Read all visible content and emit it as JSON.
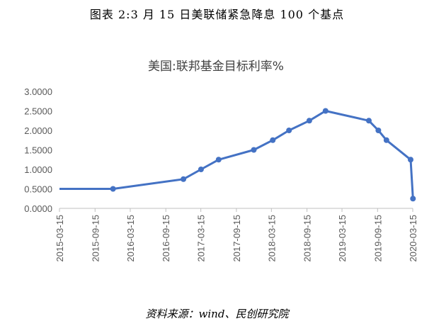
{
  "caption": "图表 2:3 月 15 日美联储紧急降息 100 个基点",
  "source": "资料来源：wind、民创研究院",
  "chart_data": {
    "type": "line",
    "title": "美国:联邦基金目标利率%",
    "xlabel": "",
    "ylabel": "",
    "x_tick_labels": [
      "2015-03-15",
      "2015-09-15",
      "2016-03-15",
      "2016-09-15",
      "2017-03-15",
      "2017-09-15",
      "2018-03-15",
      "2018-09-15",
      "2019-03-15",
      "2019-09-15",
      "2020-03-15"
    ],
    "y_tick_labels": [
      "0.0000",
      "0.5000",
      "1.0000",
      "1.5000",
      "2.0000",
      "2.5000",
      "3.0000"
    ],
    "ylim": [
      0,
      3
    ],
    "xlim": [
      "2015-03-15",
      "2020-03-15"
    ],
    "series_color": "#4472C4",
    "x": [
      "2015-03-15",
      "2015-12-17",
      "2016-12-15",
      "2017-03-16",
      "2017-06-15",
      "2017-12-14",
      "2018-03-22",
      "2018-06-14",
      "2018-09-27",
      "2018-12-20",
      "2019-08-01",
      "2019-09-19",
      "2019-10-31",
      "2020-03-04",
      "2020-03-16"
    ],
    "values": [
      0.5,
      0.5,
      0.75,
      1.0,
      1.25,
      1.5,
      1.75,
      2.0,
      2.25,
      2.5,
      2.25,
      2.0,
      1.75,
      1.25,
      0.25
    ],
    "markers": [
      false,
      true,
      true,
      true,
      true,
      true,
      true,
      true,
      true,
      true,
      true,
      true,
      true,
      true,
      true
    ],
    "legend": "none",
    "grid": false
  }
}
